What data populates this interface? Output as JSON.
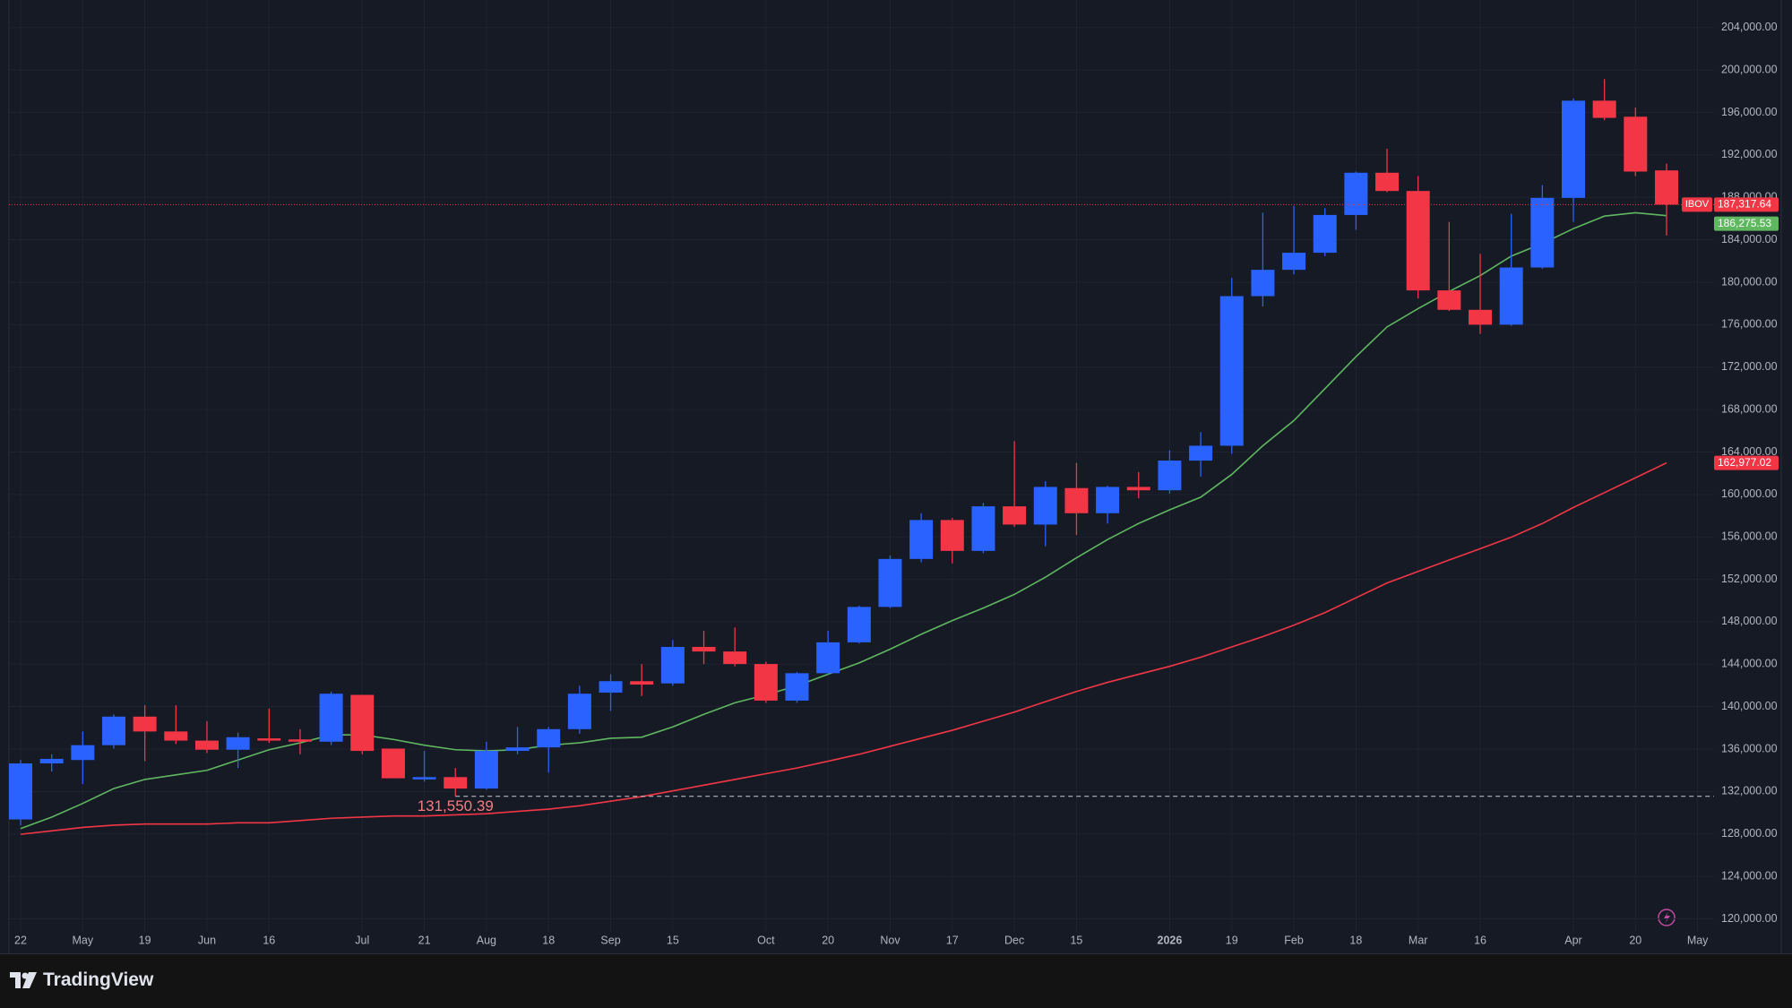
{
  "chart_data": {
    "type": "candlestick",
    "categories": [
      "22",
      null,
      "May",
      null,
      "19",
      null,
      "Jun",
      null,
      "16",
      null,
      null,
      "Jul",
      null,
      "21",
      null,
      "Aug",
      null,
      "18",
      null,
      "Sep",
      null,
      "15",
      null,
      null,
      "Oct",
      null,
      "20",
      null,
      "Nov",
      null,
      "17",
      null,
      "Dec",
      null,
      "15",
      null,
      null,
      "2026",
      null,
      "19",
      null,
      "Feb",
      null,
      "18",
      null,
      "Mar",
      null,
      "16",
      null,
      null,
      "Apr",
      null,
      "20",
      null,
      "May"
    ],
    "open": [
      129370,
      134650,
      134970,
      136370,
      139060,
      137660,
      136800,
      135940,
      137010,
      136910,
      136700,
      141110,
      136050,
      133140,
      133360,
      132280,
      135830,
      136160,
      137880,
      141320,
      142400,
      142190,
      145630,
      145200,
      144020,
      140570,
      143150,
      146060,
      149400,
      153920,
      157590,
      154680,
      158880,
      157160,
      160600,
      158230,
      160710,
      160390,
      163190,
      164590,
      178690,
      181170,
      182780,
      186340,
      190320,
      188600,
      179230,
      177400,
      176000,
      181390,
      187950,
      197110,
      195600,
      190540,
      null
    ],
    "high": [
      134970,
      135510,
      137660,
      139280,
      140140,
      140140,
      138630,
      137550,
      139820,
      137880,
      141430,
      141110,
      136050,
      135830,
      134220,
      136700,
      138090,
      138090,
      141970,
      143050,
      144020,
      146280,
      147140,
      147460,
      144230,
      143260,
      147140,
      149510,
      154250,
      158230,
      157800,
      159200,
      165020,
      161250,
      162970,
      160820,
      162110,
      164160,
      165880,
      180410,
      186550,
      187200,
      186980,
      190430,
      192580,
      190000,
      185690,
      182680,
      186450,
      189140,
      197320,
      199150,
      196460,
      191180,
      null
    ],
    "low": [
      128830,
      133890,
      132710,
      136050,
      134860,
      136480,
      135620,
      134220,
      136590,
      135510,
      136370,
      135510,
      133250,
      132930,
      131550.39,
      132170,
      135510,
      133790,
      137450,
      139600,
      141000,
      141970,
      144020,
      143800,
      140360,
      140360,
      143050,
      145950,
      149290,
      153600,
      153500,
      154460,
      156940,
      155110,
      156180,
      157260,
      159630,
      160070,
      161680,
      163830,
      177720,
      180740,
      182460,
      184940,
      188490,
      178480,
      177290,
      175140,
      175890,
      181280,
      185690,
      195280,
      190000,
      184400,
      null
    ],
    "close": [
      134650,
      135080,
      136370,
      139060,
      137660,
      136800,
      135940,
      137120,
      136800,
      136700,
      141220,
      135830,
      133250,
      133360,
      132280,
      135830,
      136160,
      137880,
      141220,
      142400,
      142080,
      145630,
      145200,
      144020,
      140570,
      143150,
      146060,
      149400,
      153920,
      157590,
      154680,
      158880,
      157160,
      160710,
      158230,
      160710,
      160390,
      163190,
      164590,
      178690,
      181170,
      182780,
      186340,
      190320,
      188600,
      179230,
      177400,
      176000,
      181390,
      187950,
      197110,
      195490,
      190430,
      187317.64,
      null
    ],
    "up_color": "#2962ff",
    "down_color": "#f23645",
    "series": [
      {
        "color": "#5fb760",
        "last_label": "186,275.53",
        "values": [
          128510,
          129590,
          130880,
          132280,
          133140,
          133570,
          134000,
          134970,
          135940,
          136590,
          137340,
          137340,
          136910,
          136370,
          135940,
          135830,
          135940,
          136370,
          136590,
          137020,
          137120,
          138090,
          139280,
          140360,
          141110,
          141970,
          143050,
          144120,
          145420,
          146820,
          148110,
          149290,
          150580,
          152200,
          154030,
          155750,
          157260,
          158550,
          159740,
          161890,
          164590,
          166960,
          169970,
          172990,
          175790,
          177510,
          179130,
          180630,
          182460,
          183650,
          185050,
          186230,
          186550,
          186275.53,
          null
        ]
      },
      {
        "color": "#f23645",
        "last_label": "162,977.02",
        "values": [
          127970,
          128290,
          128620,
          128830,
          128940,
          128940,
          128940,
          129050,
          129050,
          129260,
          129480,
          129590,
          129700,
          129700,
          129800,
          129910,
          130130,
          130340,
          130660,
          131090,
          131520,
          132060,
          132600,
          133140,
          133680,
          134220,
          134860,
          135510,
          136260,
          137020,
          137770,
          138630,
          139490,
          140470,
          141430,
          142290,
          143050,
          143800,
          144660,
          145630,
          146600,
          147680,
          148860,
          150260,
          151660,
          152740,
          153820,
          154890,
          155970,
          157260,
          158770,
          160170,
          161570,
          162977.02,
          null
        ]
      }
    ],
    "last_price": {
      "symbol": "IBOV",
      "value": 187317.64,
      "label": "187,317.64"
    },
    "annotations": [
      {
        "text": "131,550.39",
        "value": 131550.39
      }
    ],
    "ylim": [
      116750,
      206600
    ],
    "yticks": [
      {
        "value": 120000,
        "label": "120,000.00"
      },
      {
        "value": 124000,
        "label": "124,000.00"
      },
      {
        "value": 128000,
        "label": "128,000.00"
      },
      {
        "value": 132000,
        "label": "132,000.00"
      },
      {
        "value": 136000,
        "label": "136,000.00"
      },
      {
        "value": 140000,
        "label": "140,000.00"
      },
      {
        "value": 144000,
        "label": "144,000.00"
      },
      {
        "value": 148000,
        "label": "148,000.00"
      },
      {
        "value": 152000,
        "label": "152,000.00"
      },
      {
        "value": 156000,
        "label": "156,000.00"
      },
      {
        "value": 160000,
        "label": "160,000.00"
      },
      {
        "value": 164000,
        "label": "164,000.00"
      },
      {
        "value": 168000,
        "label": "168,000.00"
      },
      {
        "value": 172000,
        "label": "172,000.00"
      },
      {
        "value": 176000,
        "label": "176,000.00"
      },
      {
        "value": 180000,
        "label": "180,000.00"
      },
      {
        "value": 184000,
        "label": "184,000.00"
      },
      {
        "value": 188000,
        "label": "188,000.00"
      },
      {
        "value": 192000,
        "label": "192,000.00"
      },
      {
        "value": 196000,
        "label": "196,000.00"
      },
      {
        "value": 200000,
        "label": "200,000.00"
      },
      {
        "value": 204000,
        "label": "204,000.00"
      }
    ],
    "grid": true
  },
  "footer": {
    "brand": "TradingView"
  }
}
